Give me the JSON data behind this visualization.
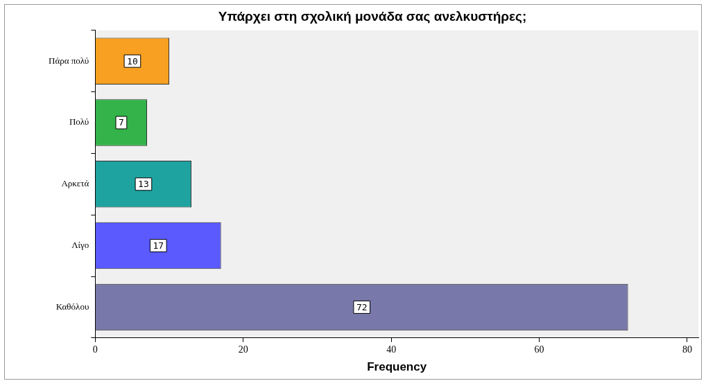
{
  "chart_data": {
    "type": "bar",
    "orientation": "horizontal",
    "title": "Υπάρχει στη σχολική μονάδα σας ανελκυστήρες;",
    "xlabel": "Frequency",
    "categories": [
      "Πάρα πολύ",
      "Πολύ",
      "Αρκετά",
      "Λίγο",
      "Καθόλου"
    ],
    "values": [
      10,
      7,
      13,
      17,
      72
    ],
    "colors": [
      "#f7a021",
      "#33b34a",
      "#1fa3a0",
      "#5a5aff",
      "#7878aa"
    ],
    "xlim": [
      0,
      81.5
    ],
    "xticks": [
      0,
      20,
      40,
      60,
      80
    ],
    "grid": false,
    "legend": false,
    "data_labels": true
  }
}
